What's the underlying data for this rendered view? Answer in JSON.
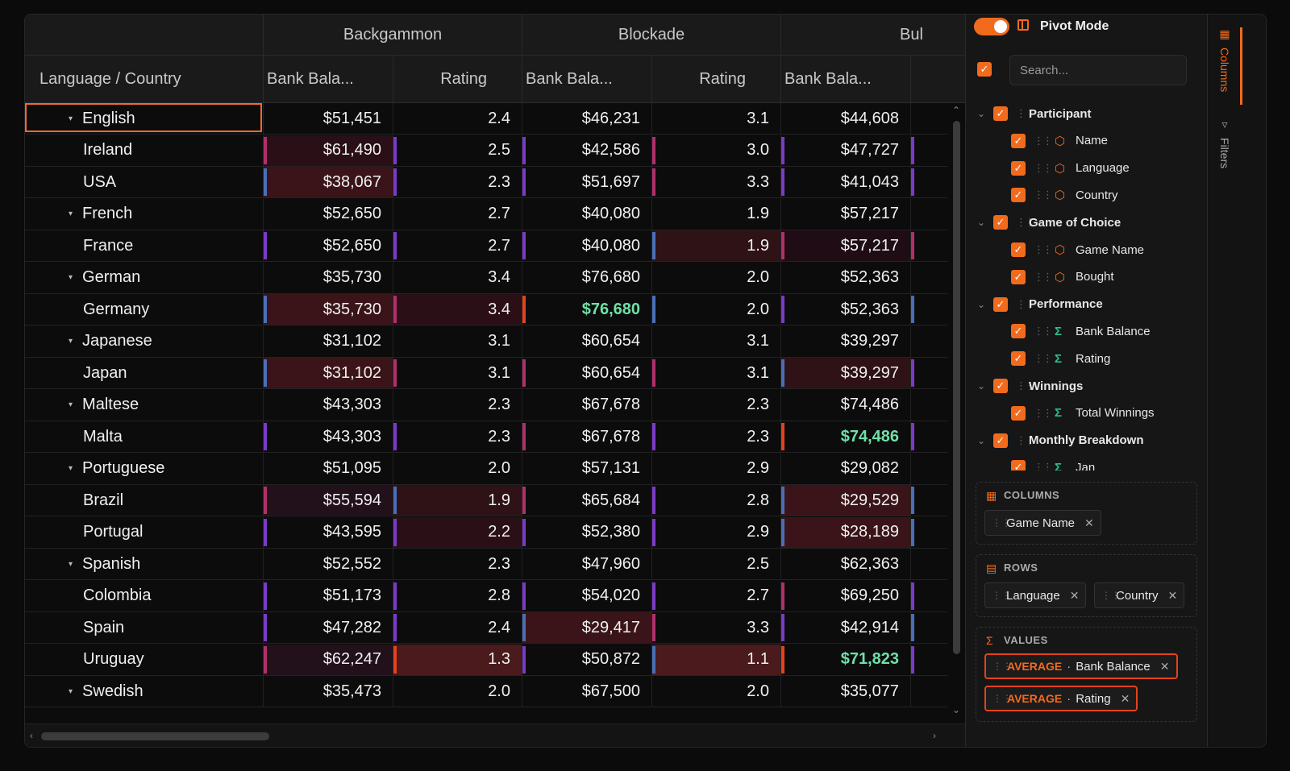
{
  "grid": {
    "group_headers": [
      "Backgammon",
      "Blockade",
      "Bul"
    ],
    "sub_headers": [
      "Language / Country",
      "Bank Bala...",
      "Rating",
      "Bank Bala...",
      "Rating",
      "Bank Bala..."
    ],
    "rows": [
      {
        "label": "English",
        "level": 0,
        "cells": [
          "$51,451",
          "2.4",
          "$46,231",
          "3.1",
          "$44,608"
        ],
        "bars": []
      },
      {
        "label": "Ireland",
        "level": 1,
        "cells": [
          "$61,490",
          "2.5",
          "$42,586",
          "3.0",
          "$47,727"
        ],
        "bars": [
          "#b0306a",
          "#7b3ac8",
          "#7b3ac8",
          "#b0306a",
          "#7b3ac8",
          "#7b3ac8"
        ],
        "bgs": [
          "#2a0f16",
          "",
          "",
          "",
          "",
          ""
        ]
      },
      {
        "label": "USA",
        "level": 1,
        "cells": [
          "$38,067",
          "2.3",
          "$51,697",
          "3.3",
          "$41,043"
        ],
        "bars": [
          "#4a6fb8",
          "#7b3ac8",
          "#7b3ac8",
          "#b0306a",
          "#7b3ac8",
          "#7b3ac8"
        ],
        "bgs": [
          "#3a1418",
          "",
          "",
          "",
          "",
          ""
        ]
      },
      {
        "label": "French",
        "level": 0,
        "cells": [
          "$52,650",
          "2.7",
          "$40,080",
          "1.9",
          "$57,217"
        ],
        "bars": []
      },
      {
        "label": "France",
        "level": 1,
        "cells": [
          "$52,650",
          "2.7",
          "$40,080",
          "1.9",
          "$57,217"
        ],
        "bars": [
          "#7b3ac8",
          "#7b3ac8",
          "#7b3ac8",
          "#4a6fb8",
          "#b0306a",
          "#b0306a"
        ],
        "bgs": [
          "",
          "",
          "",
          "#2e1216",
          "#1f0c14",
          ""
        ]
      },
      {
        "label": "German",
        "level": 0,
        "cells": [
          "$35,730",
          "3.4",
          "$76,680",
          "2.0",
          "$52,363"
        ],
        "bars": []
      },
      {
        "label": "Germany",
        "level": 1,
        "cells": [
          "$35,730",
          "3.4",
          "$76,680",
          "2.0",
          "$52,363"
        ],
        "bars": [
          "#4a6fb8",
          "#b0306a",
          "#e3431c",
          "#4a6fb8",
          "#7b3ac8",
          "#4a6fb8"
        ],
        "bgs": [
          "#3a1418",
          "#2a0f16",
          "",
          "",
          "",
          ""
        ],
        "green": [
          2
        ]
      },
      {
        "label": "Japanese",
        "level": 0,
        "cells": [
          "$31,102",
          "3.1",
          "$60,654",
          "3.1",
          "$39,297"
        ],
        "bars": []
      },
      {
        "label": "Japan",
        "level": 1,
        "cells": [
          "$31,102",
          "3.1",
          "$60,654",
          "3.1",
          "$39,297"
        ],
        "bars": [
          "#4a6fb8",
          "#b0306a",
          "#b0306a",
          "#b0306a",
          "#4a6fb8",
          "#7b3ac8"
        ],
        "bgs": [
          "#3a1418",
          "",
          "",
          "",
          "#2e1216",
          ""
        ]
      },
      {
        "label": "Maltese",
        "level": 0,
        "cells": [
          "$43,303",
          "2.3",
          "$67,678",
          "2.3",
          "$74,486"
        ],
        "bars": []
      },
      {
        "label": "Malta",
        "level": 1,
        "cells": [
          "$43,303",
          "2.3",
          "$67,678",
          "2.3",
          "$74,486"
        ],
        "bars": [
          "#7b3ac8",
          "#7b3ac8",
          "#b0306a",
          "#7b3ac8",
          "#e3431c",
          "#7b3ac8"
        ],
        "bgs": [
          "",
          "",
          "",
          "",
          "",
          ""
        ],
        "green": [
          4
        ]
      },
      {
        "label": "Portuguese",
        "level": 0,
        "cells": [
          "$51,095",
          "2.0",
          "$57,131",
          "2.9",
          "$29,082"
        ],
        "bars": []
      },
      {
        "label": "Brazil",
        "level": 1,
        "cells": [
          "$55,594",
          "1.9",
          "$65,684",
          "2.8",
          "$29,529"
        ],
        "bars": [
          "#b0306a",
          "#4a6fb8",
          "#b0306a",
          "#7b3ac8",
          "#4a6fb8",
          "#4a6fb8"
        ],
        "bgs": [
          "#22101a",
          "#2e1216",
          "",
          "",
          "#3a1418",
          ""
        ]
      },
      {
        "label": "Portugal",
        "level": 1,
        "cells": [
          "$43,595",
          "2.2",
          "$52,380",
          "2.9",
          "$28,189"
        ],
        "bars": [
          "#7b3ac8",
          "#7b3ac8",
          "#7b3ac8",
          "#7b3ac8",
          "#4a6fb8",
          "#4a6fb8"
        ],
        "bgs": [
          "",
          "#2a1016",
          "",
          "",
          "#3a1418",
          ""
        ]
      },
      {
        "label": "Spanish",
        "level": 0,
        "cells": [
          "$52,552",
          "2.3",
          "$47,960",
          "2.5",
          "$62,363"
        ],
        "bars": []
      },
      {
        "label": "Colombia",
        "level": 1,
        "cells": [
          "$51,173",
          "2.8",
          "$54,020",
          "2.7",
          "$69,250"
        ],
        "bars": [
          "#7b3ac8",
          "#7b3ac8",
          "#7b3ac8",
          "#7b3ac8",
          "#b0306a",
          "#7b3ac8"
        ],
        "bgs": [
          "",
          "",
          "",
          "",
          "",
          ""
        ]
      },
      {
        "label": "Spain",
        "level": 1,
        "cells": [
          "$47,282",
          "2.4",
          "$29,417",
          "3.3",
          "$42,914"
        ],
        "bars": [
          "#7b3ac8",
          "#7b3ac8",
          "#4a6fb8",
          "#b0306a",
          "#7b3ac8",
          "#4a6fb8"
        ],
        "bgs": [
          "",
          "",
          "#3a1418",
          "",
          "",
          ""
        ]
      },
      {
        "label": "Uruguay",
        "level": 1,
        "cells": [
          "$62,247",
          "1.3",
          "$50,872",
          "1.1",
          "$71,823"
        ],
        "bars": [
          "#b0306a",
          "#e3431c",
          "#7b3ac8",
          "#4a6fb8",
          "#e3431c",
          "#7b3ac8"
        ],
        "bgs": [
          "#22101a",
          "#4a1a1c",
          "",
          "#4a1a1c",
          "",
          ""
        ],
        "green": [
          4
        ]
      },
      {
        "label": "Swedish",
        "level": 0,
        "cells": [
          "$35,473",
          "2.0",
          "$67,500",
          "2.0",
          "$35,077"
        ],
        "bars": []
      }
    ]
  },
  "panel": {
    "pivot_mode_label": "Pivot Mode",
    "search_placeholder": "Search...",
    "tree": [
      {
        "label": "Participant",
        "type": "group"
      },
      {
        "label": "Name",
        "type": "dim"
      },
      {
        "label": "Language",
        "type": "dim"
      },
      {
        "label": "Country",
        "type": "dim"
      },
      {
        "label": "Game of Choice",
        "type": "group"
      },
      {
        "label": "Game Name",
        "type": "dim"
      },
      {
        "label": "Bought",
        "type": "dim"
      },
      {
        "label": "Performance",
        "type": "group"
      },
      {
        "label": "Bank Balance",
        "type": "val"
      },
      {
        "label": "Rating",
        "type": "val"
      },
      {
        "label": "Winnings",
        "type": "group"
      },
      {
        "label": "Total Winnings",
        "type": "val"
      },
      {
        "label": "Monthly Breakdown",
        "type": "group"
      },
      {
        "label": "Jan",
        "type": "val"
      }
    ],
    "columns_title": "COLUMNS",
    "columns_pills": [
      "Game Name"
    ],
    "rows_title": "ROWS",
    "rows_pills": [
      "Language",
      "Country"
    ],
    "values_title": "VALUES",
    "values_pills": [
      {
        "agg": "AVERAGE",
        "field": "Bank Balance"
      },
      {
        "agg": "AVERAGE",
        "field": "Rating"
      }
    ]
  },
  "side_tabs": [
    "Columns",
    "Filters"
  ],
  "colors": {
    "accent": "#f26b1d",
    "highlight_green": "#6fe0a8"
  }
}
